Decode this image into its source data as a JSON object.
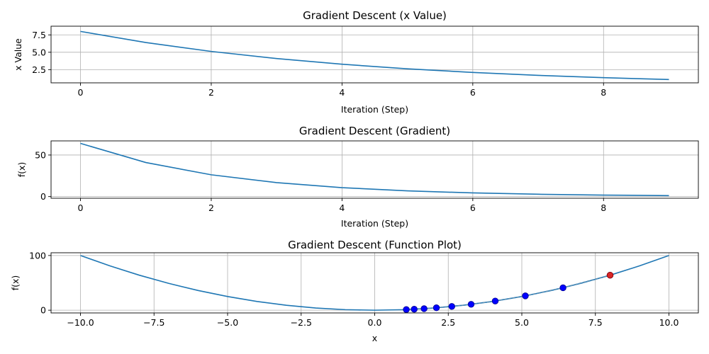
{
  "colors": {
    "line": "#1f77b4",
    "grid": "#b0b0b0",
    "points": "#0000ff",
    "last_point": "#d62728"
  },
  "chart_data": [
    {
      "type": "line",
      "title": "Gradient Descent (x Value)",
      "xlabel": "Iteration (Step)",
      "ylabel": "x Value",
      "grid": true,
      "xlim": [
        -0.45,
        9.45
      ],
      "ylim": [
        0.6,
        8.75
      ],
      "xticks": [
        0,
        2,
        4,
        6,
        8
      ],
      "xtick_labels": [
        "0",
        "2",
        "4",
        "6",
        "8"
      ],
      "yticks": [
        2.5,
        5.0,
        7.5
      ],
      "ytick_labels": [
        "2.5",
        "5.0",
        "7.5"
      ],
      "x": [
        0,
        1,
        2,
        3,
        4,
        5,
        6,
        7,
        8,
        9
      ],
      "y": [
        8.0,
        6.4,
        5.12,
        4.096,
        3.277,
        2.621,
        2.097,
        1.678,
        1.342,
        1.074
      ]
    },
    {
      "type": "line",
      "title": "Gradient Descent (Gradient)",
      "xlabel": "Iteration (Step)",
      "ylabel": "f(x)",
      "grid": true,
      "xlim": [
        -0.45,
        9.45
      ],
      "ylim": [
        -2.0,
        67.0
      ],
      "xticks": [
        0,
        2,
        4,
        6,
        8
      ],
      "xtick_labels": [
        "0",
        "2",
        "4",
        "6",
        "8"
      ],
      "yticks": [
        0,
        50
      ],
      "ytick_labels": [
        "0",
        "50"
      ],
      "x": [
        0,
        1,
        2,
        3,
        4,
        5,
        6,
        7,
        8,
        9
      ],
      "y": [
        64.0,
        40.96,
        26.21,
        16.78,
        10.74,
        6.87,
        4.4,
        2.81,
        1.8,
        1.15
      ]
    },
    {
      "type": "scatter",
      "title": "Gradient Descent (Function Plot)",
      "xlabel": "x",
      "ylabel": "f(x)",
      "grid": true,
      "xlim": [
        -11.0,
        11.0
      ],
      "ylim": [
        -5.0,
        105.0
      ],
      "xticks": [
        -10.0,
        -7.5,
        -5.0,
        -2.5,
        0.0,
        2.5,
        5.0,
        7.5,
        10.0
      ],
      "xtick_labels": [
        "−10.0",
        "−7.5",
        "−5.0",
        "−2.5",
        "0.0",
        "2.5",
        "5.0",
        "7.5",
        "10.0"
      ],
      "yticks": [
        0,
        100
      ],
      "ytick_labels": [
        "0",
        "100"
      ],
      "curve": {
        "x": [
          -10,
          -9,
          -8,
          -7,
          -6,
          -5,
          -4,
          -3,
          -2,
          -1,
          0,
          1,
          2,
          3,
          4,
          5,
          6,
          7,
          8,
          9,
          10
        ],
        "y": [
          100,
          81,
          64,
          49,
          36,
          25,
          16,
          9,
          4,
          1,
          0,
          1,
          4,
          9,
          16,
          25,
          36,
          49,
          64,
          81,
          100
        ]
      },
      "points": {
        "x": [
          8.0,
          6.4,
          5.12,
          4.096,
          3.277,
          2.621,
          2.097,
          1.678,
          1.342,
          1.074
        ],
        "y": [
          64.0,
          40.96,
          26.21,
          16.78,
          10.74,
          6.87,
          4.4,
          2.81,
          1.8,
          1.15
        ]
      },
      "path_line": {
        "x": [
          8.0,
          6.4,
          5.12,
          4.096,
          3.277,
          2.621,
          2.097,
          1.678,
          1.342,
          1.074
        ],
        "y": [
          64.0,
          40.96,
          26.21,
          16.78,
          10.74,
          6.87,
          4.4,
          2.81,
          1.8,
          1.15
        ]
      },
      "highlight_point": {
        "x": 8.0,
        "y": 64.0
      }
    }
  ]
}
